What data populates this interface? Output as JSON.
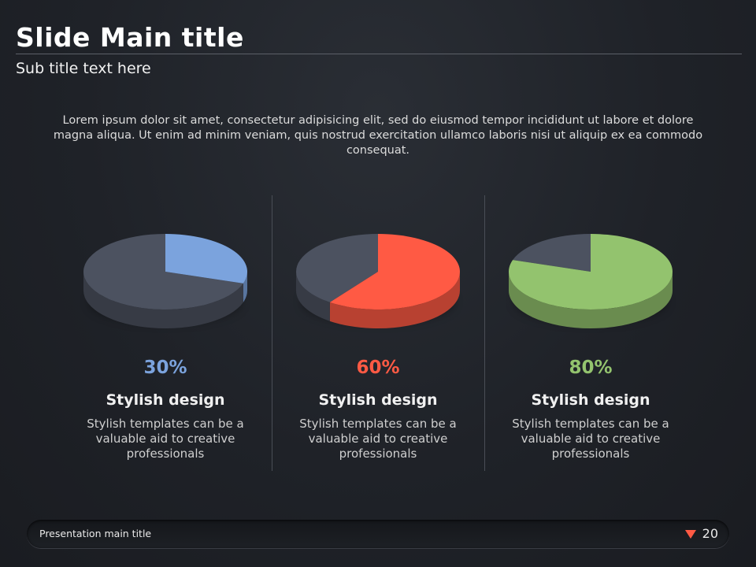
{
  "slide": {
    "title": "Slide Main title",
    "subtitle": "Sub title text here",
    "intro": "Lorem ipsum dolor sit amet, consectetur adipisicing elit, sed do eiusmod tempor incididunt ut labore et dolore magna aliqua. Ut enim ad minim veniam, quis nostrud exercitation ullamco laboris nisi ut aliquip ex ea commodo consequat."
  },
  "columns": [
    {
      "percent": "30%",
      "title": "Stylish design",
      "desc": "Stylish templates can be a valuable aid to creative professionals",
      "color": "#7ba3dd",
      "value": 30
    },
    {
      "percent": "60%",
      "title": "Stylish design",
      "desc": "Stylish templates can be a valuable aid to creative professionals",
      "color": "#ff5a44",
      "value": 60
    },
    {
      "percent": "80%",
      "title": "Stylish design",
      "desc": "Stylish templates can be a valuable aid to creative professionals",
      "color": "#93c36e",
      "value": 80
    }
  ],
  "footer": {
    "title": "Presentation main title",
    "page": "20",
    "arrow_icon": "triangle-down-icon",
    "arrow_color": "#ff5a44"
  },
  "colors": {
    "pie_base": "#4c5260",
    "background": "#1f2228"
  }
}
